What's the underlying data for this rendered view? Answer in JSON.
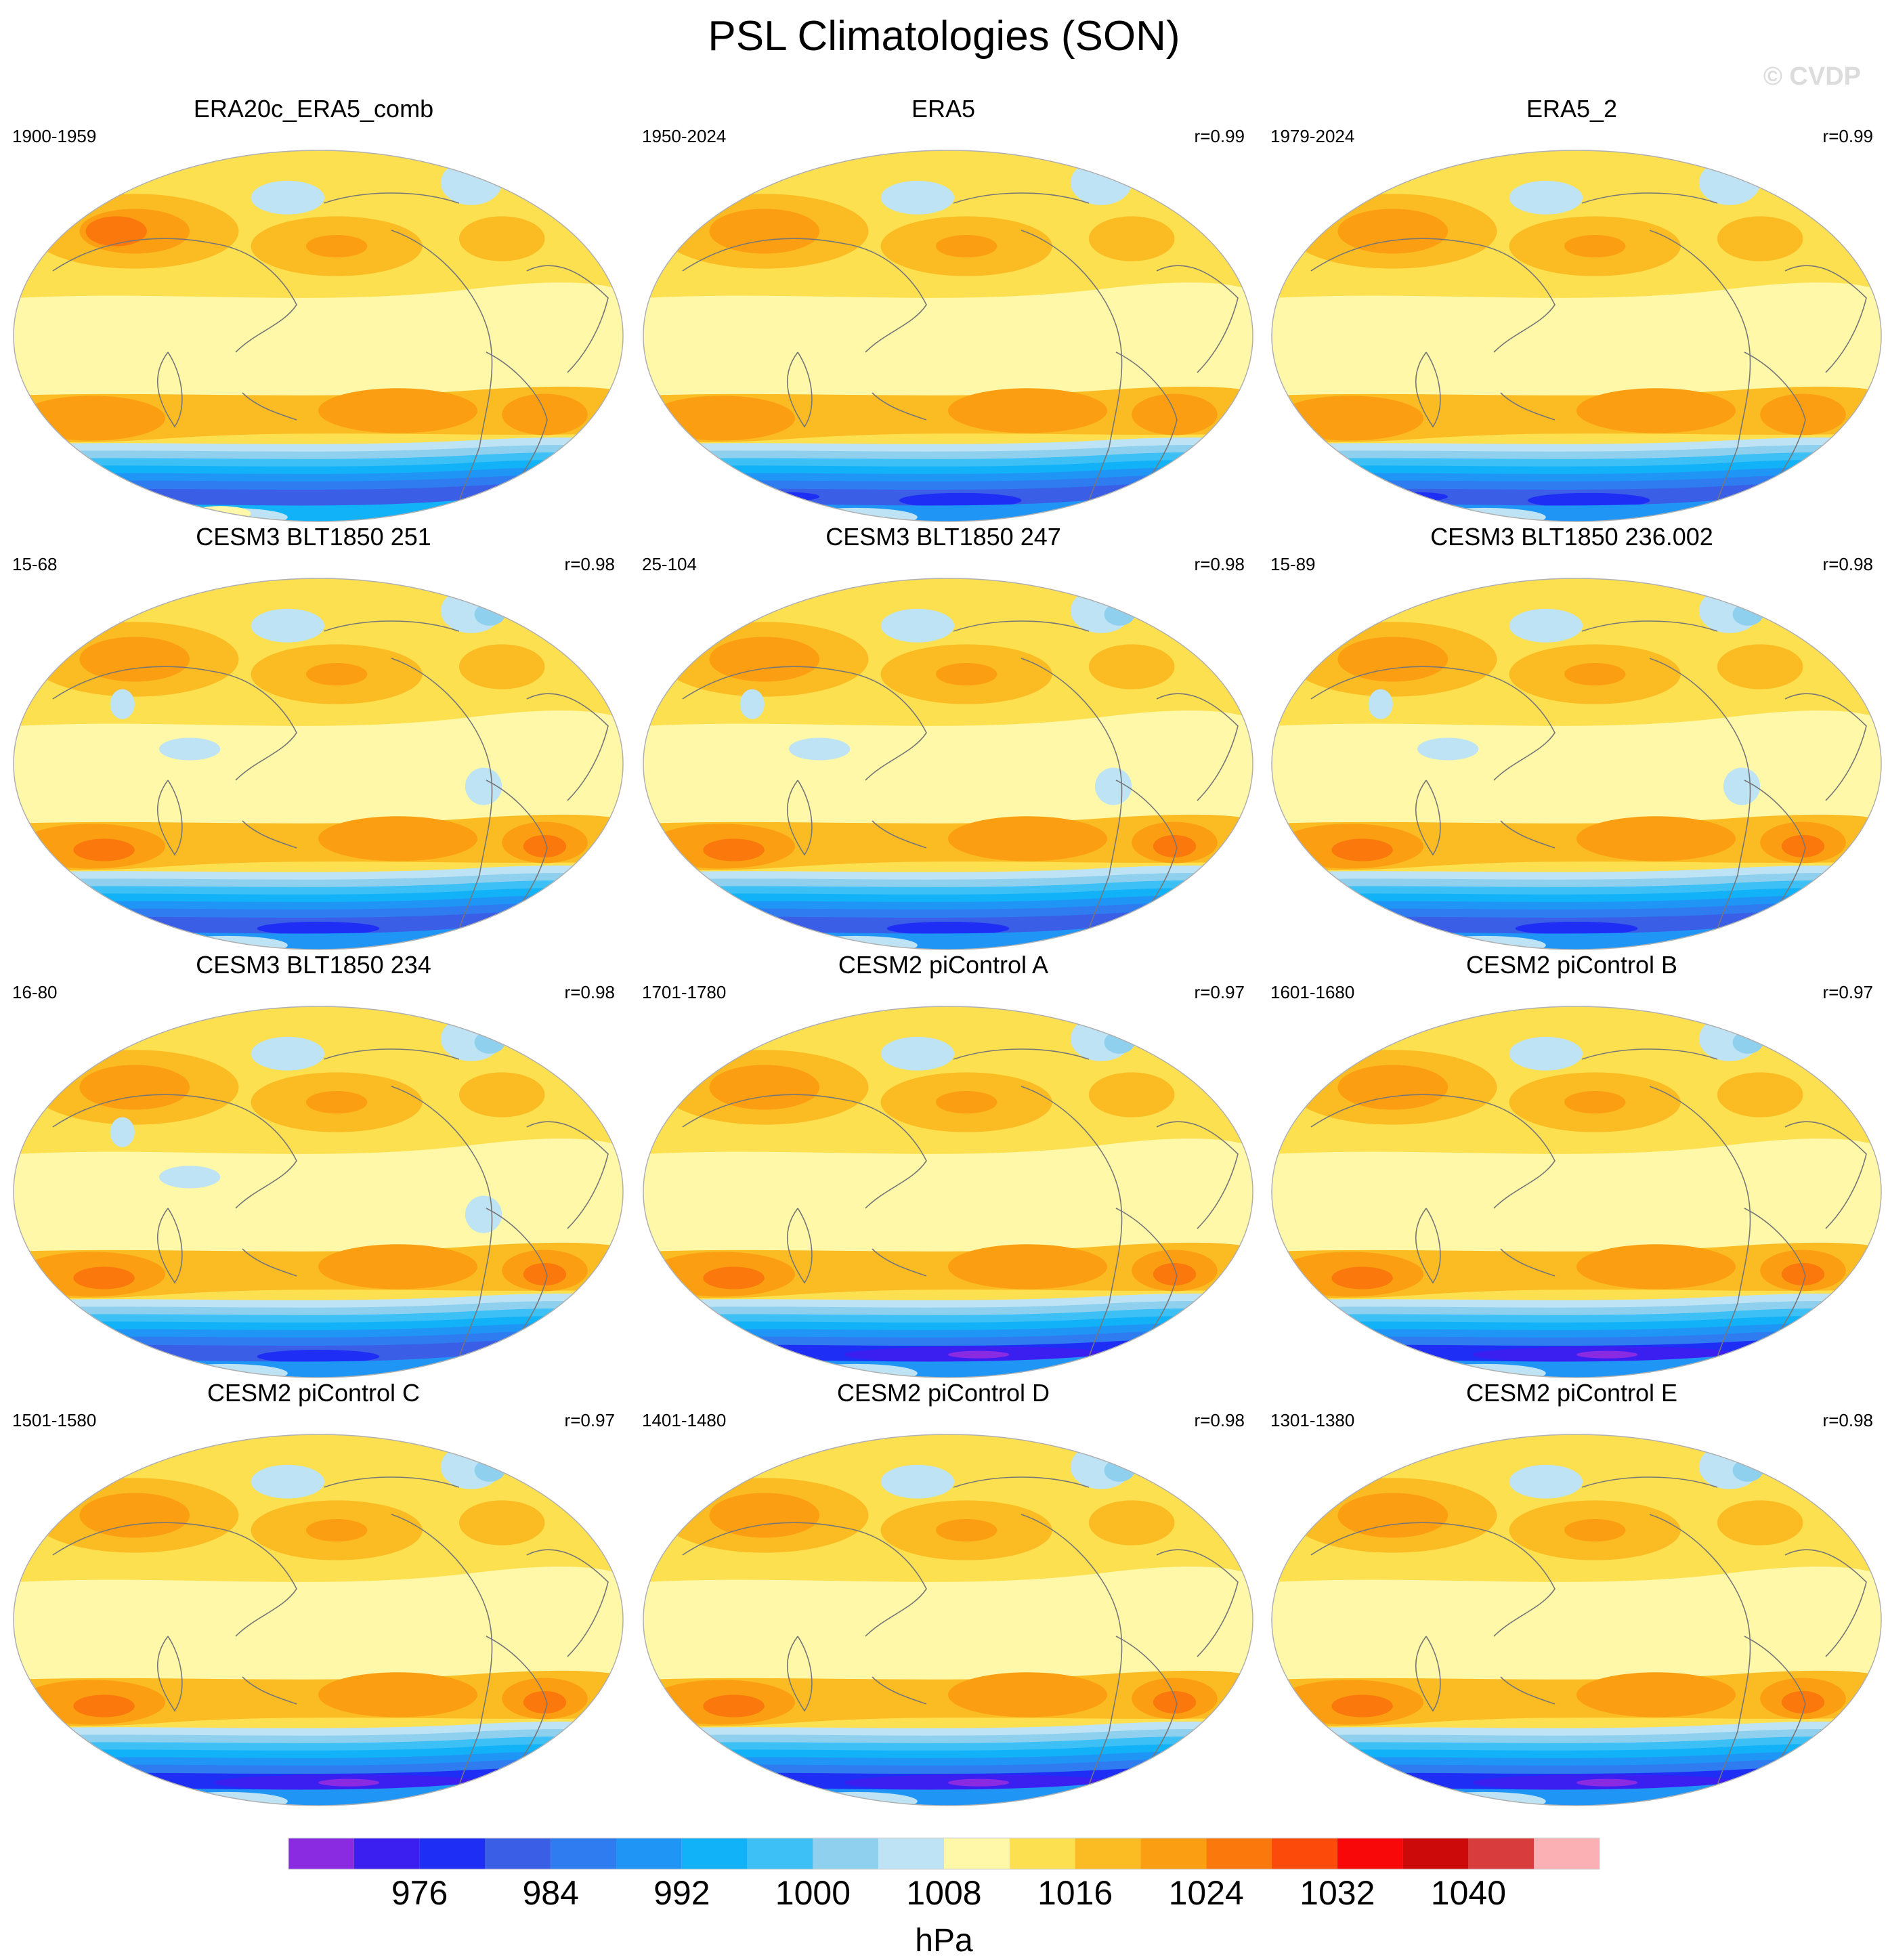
{
  "figure": {
    "title": "PSL Climatologies (SON)",
    "watermark": "© CVDP"
  },
  "panels": [
    {
      "title": "ERA20c_ERA5_comb",
      "period": "1900-1959",
      "corr": "",
      "variant": 0
    },
    {
      "title": "ERA5",
      "period": "1950-2024",
      "corr": "r=0.99",
      "variant": 1
    },
    {
      "title": "ERA5_2",
      "period": "1979-2024",
      "corr": "r=0.99",
      "variant": 1
    },
    {
      "title": "CESM3 BLT1850 251",
      "period": "15-68",
      "corr": "r=0.98",
      "variant": 2
    },
    {
      "title": "CESM3 BLT1850 247",
      "period": "25-104",
      "corr": "r=0.98",
      "variant": 2
    },
    {
      "title": "CESM3 BLT1850 236.002",
      "period": "15-89",
      "corr": "r=0.98",
      "variant": 2
    },
    {
      "title": "CESM3 BLT1850 234",
      "period": "16-80",
      "corr": "r=0.98",
      "variant": 2
    },
    {
      "title": "CESM2 piControl A",
      "period": "1701-1780",
      "corr": "r=0.97",
      "variant": 3
    },
    {
      "title": "CESM2 piControl B",
      "period": "1601-1680",
      "corr": "r=0.97",
      "variant": 3
    },
    {
      "title": "CESM2 piControl C",
      "period": "1501-1580",
      "corr": "r=0.97",
      "variant": 3
    },
    {
      "title": "CESM2 piControl D",
      "period": "1401-1480",
      "corr": "r=0.98",
      "variant": 3
    },
    {
      "title": "CESM2 piControl E",
      "period": "1301-1380",
      "corr": "r=0.98",
      "variant": 3
    }
  ],
  "colorbar": {
    "unit": "hPa",
    "colors": [
      "#8a2be2",
      "#3a1ff0",
      "#1f2ef5",
      "#3b5ee6",
      "#2f7bf0",
      "#1f96f5",
      "#12b2f8",
      "#3cc0f5",
      "#8fd0ee",
      "#bde3f5",
      "#fff8a8",
      "#fde050",
      "#fbbb22",
      "#fb9e12",
      "#fb780c",
      "#fb4a0a",
      "#f80808",
      "#cc0a0a",
      "#d83c3c",
      "#fbb0b4"
    ],
    "tick_labels": [
      "976",
      "984",
      "992",
      "1000",
      "1008",
      "1016",
      "1024",
      "1032",
      "1040"
    ],
    "tick_boundary_index": [
      2,
      4,
      6,
      8,
      10,
      12,
      14,
      16,
      18
    ]
  }
}
